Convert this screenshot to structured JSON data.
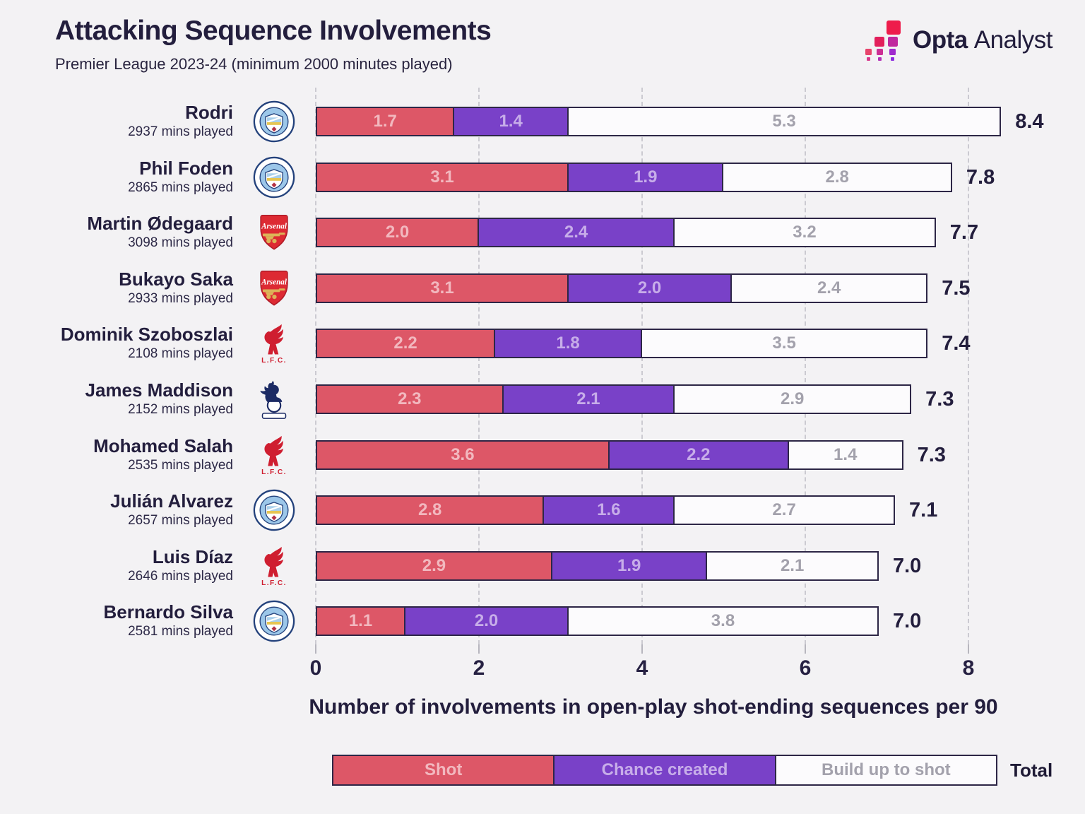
{
  "header": {
    "title": "Attacking Sequence Involvements",
    "subtitle": "Premier League 2023-24 (minimum 2000 minutes played)",
    "brand": {
      "bold": "Opta",
      "regular": "Analyst"
    }
  },
  "chart_data": {
    "type": "bar",
    "orientation": "horizontal",
    "stacked": true,
    "title": "Attacking Sequence Involvements",
    "subtitle": "Premier League 2023-24 (minimum 2000 minutes played)",
    "xlabel": "Number of involvements in open-play shot-ending sequences per 90",
    "xlim": [
      0,
      8.7
    ],
    "x_ticks": [
      0,
      2,
      4,
      6,
      8
    ],
    "grid": "dashed-vertical",
    "series_names": [
      "Shot",
      "Chance created",
      "Build up to shot"
    ],
    "legend": {
      "labels": [
        "Shot",
        "Chance created",
        "Build up to shot"
      ],
      "total_label": "Total",
      "position": "bottom"
    },
    "colors": {
      "shot": "#dd5767",
      "chance_created": "#7941c8",
      "build_up_to_shot": "#fcfbfd",
      "bar_border": "#2d2646",
      "background": "#f3f2f4",
      "text": "#231e3d"
    },
    "players": [
      {
        "name": "Rodri",
        "mins_played": "2937 mins played",
        "team": "man-city",
        "shot": 1.7,
        "chance_created": 1.4,
        "build_up_to_shot": 5.3,
        "total": 8.4
      },
      {
        "name": "Phil Foden",
        "mins_played": "2865 mins played",
        "team": "man-city",
        "shot": 3.1,
        "chance_created": 1.9,
        "build_up_to_shot": 2.8,
        "total": 7.8
      },
      {
        "name": "Martin Ødegaard",
        "mins_played": "3098 mins played",
        "team": "arsenal",
        "shot": 2.0,
        "chance_created": 2.4,
        "build_up_to_shot": 3.2,
        "total": 7.7
      },
      {
        "name": "Bukayo Saka",
        "mins_played": "2933 mins played",
        "team": "arsenal",
        "shot": 3.1,
        "chance_created": 2.0,
        "build_up_to_shot": 2.4,
        "total": 7.5
      },
      {
        "name": "Dominik Szoboszlai",
        "mins_played": "2108 mins played",
        "team": "liverpool",
        "shot": 2.2,
        "chance_created": 1.8,
        "build_up_to_shot": 3.5,
        "total": 7.4
      },
      {
        "name": "James Maddison",
        "mins_played": "2152 mins played",
        "team": "spurs",
        "shot": 2.3,
        "chance_created": 2.1,
        "build_up_to_shot": 2.9,
        "total": 7.3
      },
      {
        "name": "Mohamed Salah",
        "mins_played": "2535 mins played",
        "team": "liverpool",
        "shot": 3.6,
        "chance_created": 2.2,
        "build_up_to_shot": 1.4,
        "total": 7.3
      },
      {
        "name": "Julián Alvarez",
        "mins_played": "2657 mins played",
        "team": "man-city",
        "shot": 2.8,
        "chance_created": 1.6,
        "build_up_to_shot": 2.7,
        "total": 7.1
      },
      {
        "name": "Luis Díaz",
        "mins_played": "2646 mins played",
        "team": "liverpool",
        "shot": 2.9,
        "chance_created": 1.9,
        "build_up_to_shot": 2.1,
        "total": 7.0
      },
      {
        "name": "Bernardo Silva",
        "mins_played": "2581 mins played",
        "team": "man-city",
        "shot": 1.1,
        "chance_created": 2.0,
        "build_up_to_shot": 3.8,
        "total": 7.0
      }
    ]
  }
}
